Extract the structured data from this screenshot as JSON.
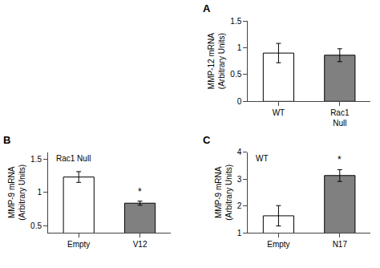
{
  "chart_data": [
    {
      "type": "bar",
      "label": "A",
      "categories": [
        "WT",
        "Rac1\nNull"
      ],
      "values": [
        0.9,
        0.86
      ],
      "errors": [
        0.18,
        0.12
      ],
      "colors": [
        "white",
        "#808080"
      ],
      "ylabel": "MMP-12 mRNA\n(Arbitrary Units)",
      "ylim": [
        0.0,
        1.5
      ],
      "yticks": [
        0,
        0.5,
        1,
        1.5
      ],
      "grid": false,
      "annotations": []
    },
    {
      "type": "bar",
      "label": "B",
      "categories": [
        "Empty",
        "V12"
      ],
      "values": [
        1.23,
        0.84
      ],
      "errors": [
        0.08,
        0.03
      ],
      "colors": [
        "white",
        "#808080"
      ],
      "ylabel": "MMP-9 mRNA\n(Arbitrary Units)",
      "ylim": [
        0.4,
        1.6
      ],
      "yticks": [
        0.5,
        1,
        1.5
      ],
      "grid": false,
      "annotations": [
        {
          "text": "Rac1 Null"
        },
        {
          "text": "*",
          "category": "V12"
        }
      ]
    },
    {
      "type": "bar",
      "label": "C",
      "categories": [
        "Empty",
        "N17"
      ],
      "values": [
        1.63,
        3.13
      ],
      "errors": [
        0.38,
        0.22
      ],
      "colors": [
        "white",
        "#808080"
      ],
      "ylabel": "MMP-9 mRNA\n(Arbitrary Units)",
      "ylim": [
        1.0,
        4.0
      ],
      "yticks": [
        1,
        2,
        3,
        4
      ],
      "grid": false,
      "annotations": [
        {
          "text": "WT"
        },
        {
          "text": "*",
          "category": "N17"
        }
      ]
    }
  ]
}
